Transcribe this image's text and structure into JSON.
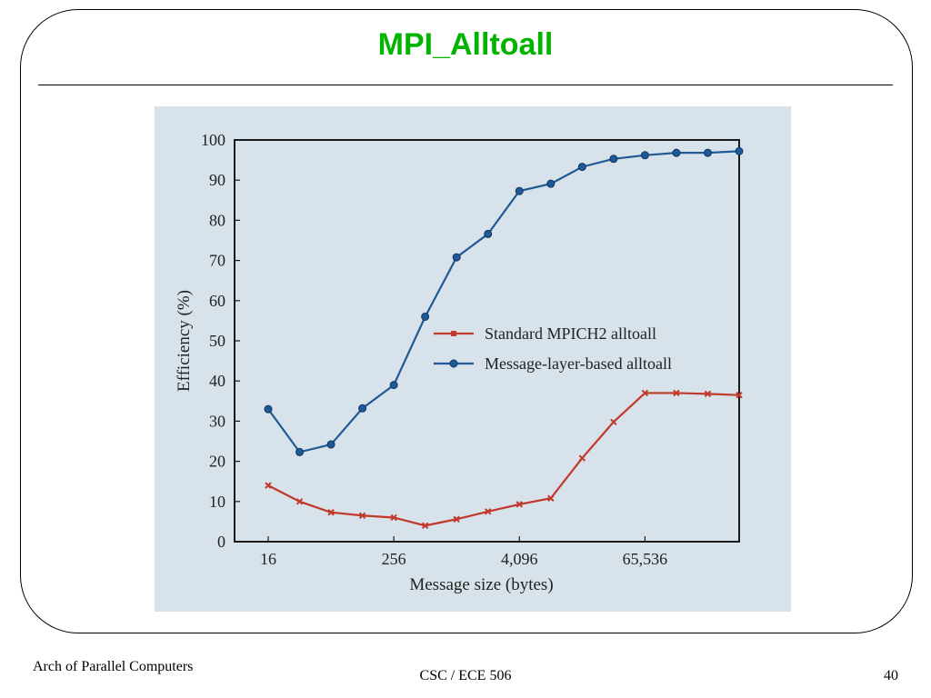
{
  "slide": {
    "title": "MPI_Alltoall",
    "footer_left": "Arch of Parallel Computers",
    "footer_center": "CSC / ECE 506",
    "footer_right": "40"
  },
  "colors": {
    "title": "#00b400",
    "panel_background": "#d8e2ea",
    "standard_series": "#c0392b",
    "message_layer_series": "#1f5a96"
  },
  "chart_data": {
    "type": "line",
    "title": "",
    "xlabel": "Message size  (bytes)",
    "ylabel": "Efficiency  (%)",
    "ylim": [
      0,
      100
    ],
    "y_ticks": [
      0,
      10,
      20,
      30,
      40,
      50,
      60,
      70,
      80,
      90,
      100
    ],
    "x_scale": "log2",
    "x_tick_labels": [
      "16",
      "256",
      "4,096",
      "65,536"
    ],
    "x_tick_values": [
      16,
      256,
      4096,
      65536
    ],
    "x": [
      16,
      32,
      64,
      128,
      256,
      512,
      1024,
      2048,
      4096,
      8192,
      16384,
      32768,
      65536,
      131072,
      262144,
      524288
    ],
    "grid": false,
    "legend_position": "center-right",
    "series": [
      {
        "name": "Standard MPICH2 alltoall",
        "marker": "x",
        "color": "#c0392b",
        "values": [
          14,
          10,
          7.3,
          6.5,
          6,
          4,
          5.6,
          7.5,
          9.3,
          10.8,
          20.8,
          29.8,
          37,
          37,
          36.8,
          36.5
        ]
      },
      {
        "name": "Message-layer-based alltoall",
        "marker": "circle",
        "color": "#1f5a96",
        "values": [
          33,
          22.3,
          24.2,
          33.2,
          39,
          56,
          70.8,
          76.6,
          87.3,
          89.1,
          93.3,
          95.3,
          96.2,
          96.8,
          96.8,
          97.2
        ]
      }
    ]
  }
}
